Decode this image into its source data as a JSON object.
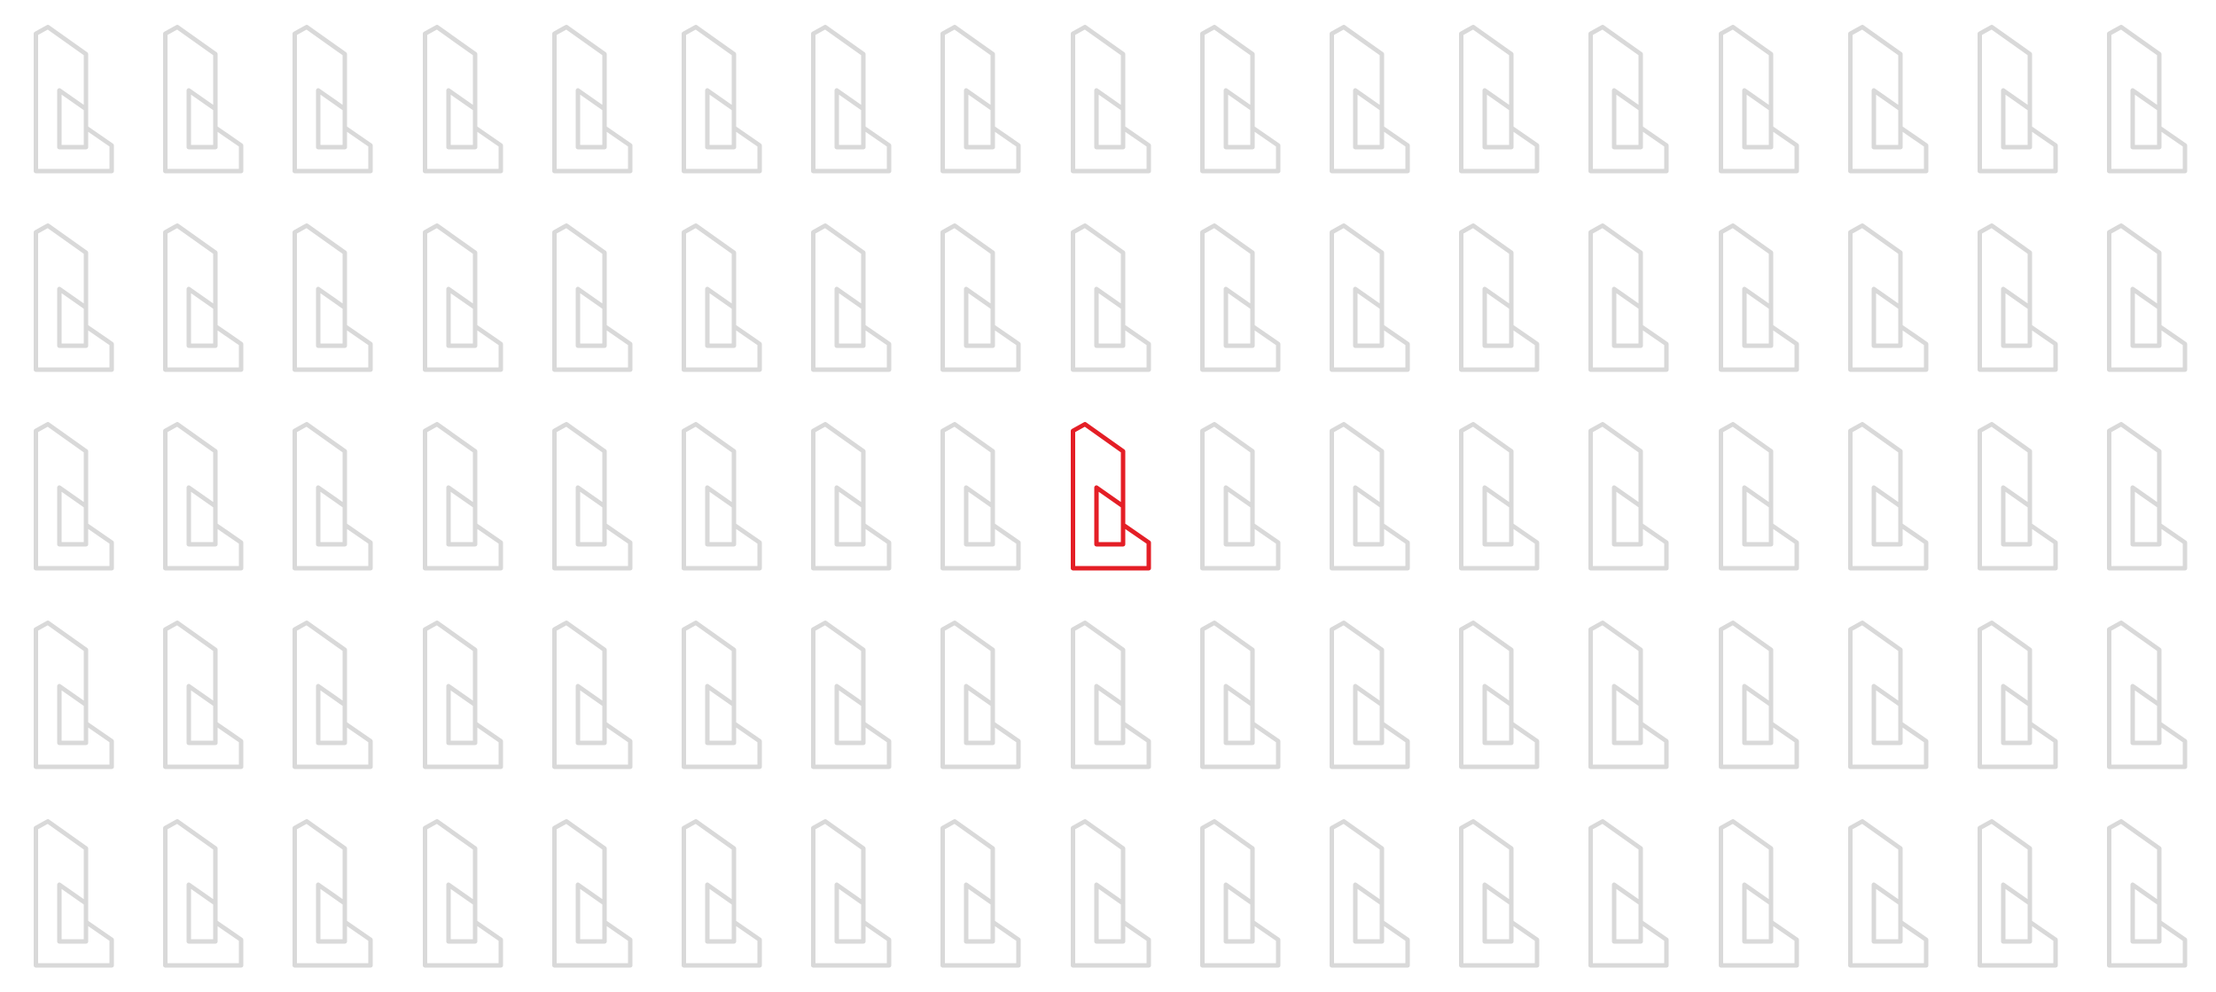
{
  "grid": {
    "rows": 5,
    "columns": 17,
    "icon_name": "building-icon",
    "highlighted": {
      "row": 3,
      "column": 9
    }
  },
  "colors": {
    "default_icon": "#d9d9d9",
    "highlight_icon": "#e41e26",
    "background": "#ffffff"
  }
}
